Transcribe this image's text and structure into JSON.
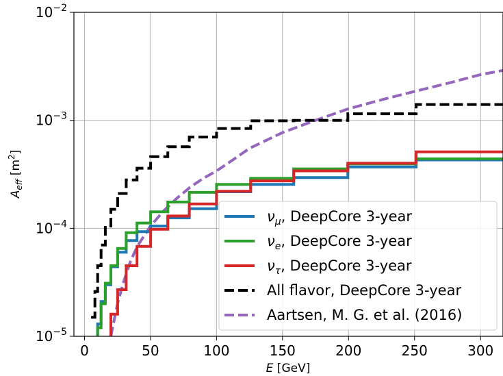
{
  "chart_data": {
    "type": "line",
    "title": "",
    "xlabel": {
      "main": "E",
      "unit": " [GeV]"
    },
    "ylabel": {
      "main": "A",
      "sub": "eff",
      "unit": " [m",
      "sup": "2",
      "close": "]"
    },
    "xlim": [
      -8,
      317
    ],
    "ylim": [
      1e-05,
      0.01
    ],
    "yscale": "log",
    "grid": true,
    "legend_position": "lower-right",
    "x_ticks": [
      {
        "value": 0,
        "label": "0"
      },
      {
        "value": 50,
        "label": "50"
      },
      {
        "value": 100,
        "label": "100"
      },
      {
        "value": 150,
        "label": "150"
      },
      {
        "value": 200,
        "label": "200"
      },
      {
        "value": 250,
        "label": "250"
      },
      {
        "value": 300,
        "label": "300"
      }
    ],
    "y_ticks": [
      {
        "value": 1e-05,
        "base": "10",
        "exp": "−5"
      },
      {
        "value": 0.0001,
        "base": "10",
        "exp": "−4"
      },
      {
        "value": 0.001,
        "base": "10",
        "exp": "−3"
      },
      {
        "value": 0.01,
        "base": "10",
        "exp": "−2"
      }
    ],
    "series": [
      {
        "key": "numu",
        "name": {
          "sym": "ν",
          "sub": "μ",
          "rest": ", DeepCore 3-year"
        },
        "color": "#1f77b4",
        "style": "step",
        "dash": false,
        "x": [
          5,
          10,
          12.6,
          15.8,
          20,
          25.1,
          31.6,
          39.8,
          50.1,
          63.1,
          79.4,
          100,
          125.9,
          158.5,
          199.5,
          251.2,
          320
        ],
        "y": [
          7e-06,
          1.3e-05,
          2.1e-05,
          3e-05,
          4.4e-05,
          6e-05,
          7.7e-05,
          9.3e-05,
          0.000105,
          0.000125,
          0.000152,
          0.000218,
          0.000255,
          0.000295,
          0.00037,
          0.00043,
          0.00043
        ]
      },
      {
        "key": "nue",
        "name": {
          "sym": "ν",
          "sub": "e",
          "rest": ", DeepCore 3-year"
        },
        "color": "#2ca02c",
        "style": "step",
        "dash": false,
        "x": [
          5,
          10,
          12.6,
          15.8,
          20,
          25.1,
          31.6,
          39.8,
          50.1,
          63.1,
          79.4,
          100,
          125.9,
          158.5,
          199.5,
          251.2,
          320
        ],
        "y": [
          7e-06,
          1.2e-05,
          2e-05,
          3.1e-05,
          4.5e-05,
          6.5e-05,
          9.1e-05,
          0.000112,
          0.000142,
          0.000175,
          0.000215,
          0.000255,
          0.00029,
          0.000355,
          0.000395,
          0.00044,
          0.00044
        ]
      },
      {
        "key": "nutau",
        "name": {
          "sym": "ν",
          "sub": "τ",
          "rest": ", DeepCore 3-year"
        },
        "color": "#d62728",
        "style": "step",
        "dash": false,
        "x": [
          15.8,
          20,
          25.1,
          31.6,
          39.8,
          50.1,
          63.1,
          79.4,
          100,
          125.9,
          158.5,
          199.5,
          251.2,
          320
        ],
        "y": [
          6e-06,
          1.6e-05,
          2.7e-05,
          4.5e-05,
          6.8e-05,
          9.8e-05,
          0.00013,
          0.000168,
          0.00022,
          0.000275,
          0.00034,
          0.0004,
          0.00051,
          0.00051
        ]
      },
      {
        "key": "all",
        "name": {
          "sym": "",
          "sub": "",
          "rest": "All flavor, DeepCore 3-year"
        },
        "color": "#000000",
        "style": "step",
        "dash": true,
        "x": [
          5,
          7.9,
          10,
          12.6,
          15.8,
          20,
          25.1,
          31.6,
          39.8,
          50.1,
          63.1,
          79.4,
          100,
          125.9,
          158.5,
          199.5,
          251.2,
          320
        ],
        "y": [
          1.5e-05,
          2.6e-05,
          4.5e-05,
          7e-05,
          0.000105,
          0.00015,
          0.00021,
          0.00028,
          0.00036,
          0.00046,
          0.00057,
          0.0007,
          0.00084,
          0.00099,
          0.001,
          0.00115,
          0.0014,
          0.0014
        ]
      },
      {
        "key": "aartsen",
        "name": {
          "sym": "",
          "sub": "",
          "rest": "Aartsen, M. G. et al. (2016)"
        },
        "color": "#9467bd",
        "style": "line",
        "dash": true,
        "x": [
          20,
          25,
          30,
          35,
          40,
          50,
          60,
          70,
          80,
          90,
          100,
          110,
          125,
          150,
          175,
          200,
          225,
          250,
          275,
          300,
          317
        ],
        "y": [
          1e-05,
          2e-05,
          3.3e-05,
          5e-05,
          6.8e-05,
          0.000105,
          0.000145,
          0.00019,
          0.00024,
          0.00029,
          0.00034,
          0.00041,
          0.00055,
          0.00077,
          0.001,
          0.00128,
          0.00155,
          0.00185,
          0.0022,
          0.00265,
          0.0029
        ]
      }
    ]
  }
}
